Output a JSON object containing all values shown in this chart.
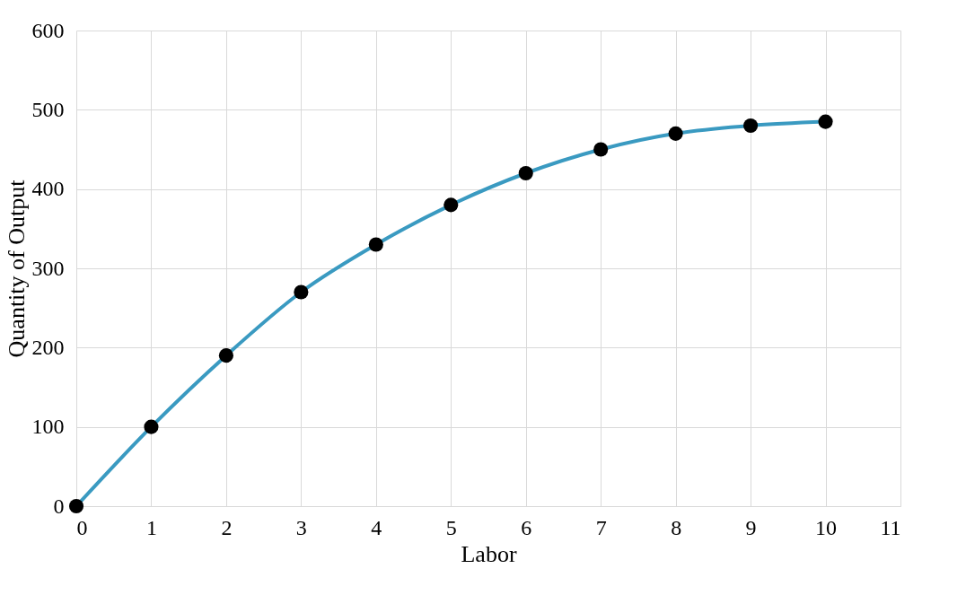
{
  "chart_data": {
    "type": "line",
    "xlabel": "Labor",
    "ylabel": "Quantity of Output",
    "x": [
      0,
      1,
      2,
      3,
      4,
      5,
      6,
      7,
      8,
      9,
      10
    ],
    "series": [
      {
        "color": "#3a9ac1",
        "values": [
          0,
          100,
          190,
          270,
          330,
          380,
          420,
          450,
          470,
          480,
          485
        ]
      }
    ],
    "xlim": [
      0,
      11
    ],
    "xticks": [
      0,
      1,
      2,
      3,
      4,
      5,
      6,
      7,
      8,
      9,
      10,
      11
    ],
    "ylim": [
      0,
      600
    ],
    "yticks": [
      0,
      100,
      200,
      300,
      400,
      500,
      600
    ],
    "grid": true,
    "marker": "circle",
    "line_style": "solid"
  }
}
